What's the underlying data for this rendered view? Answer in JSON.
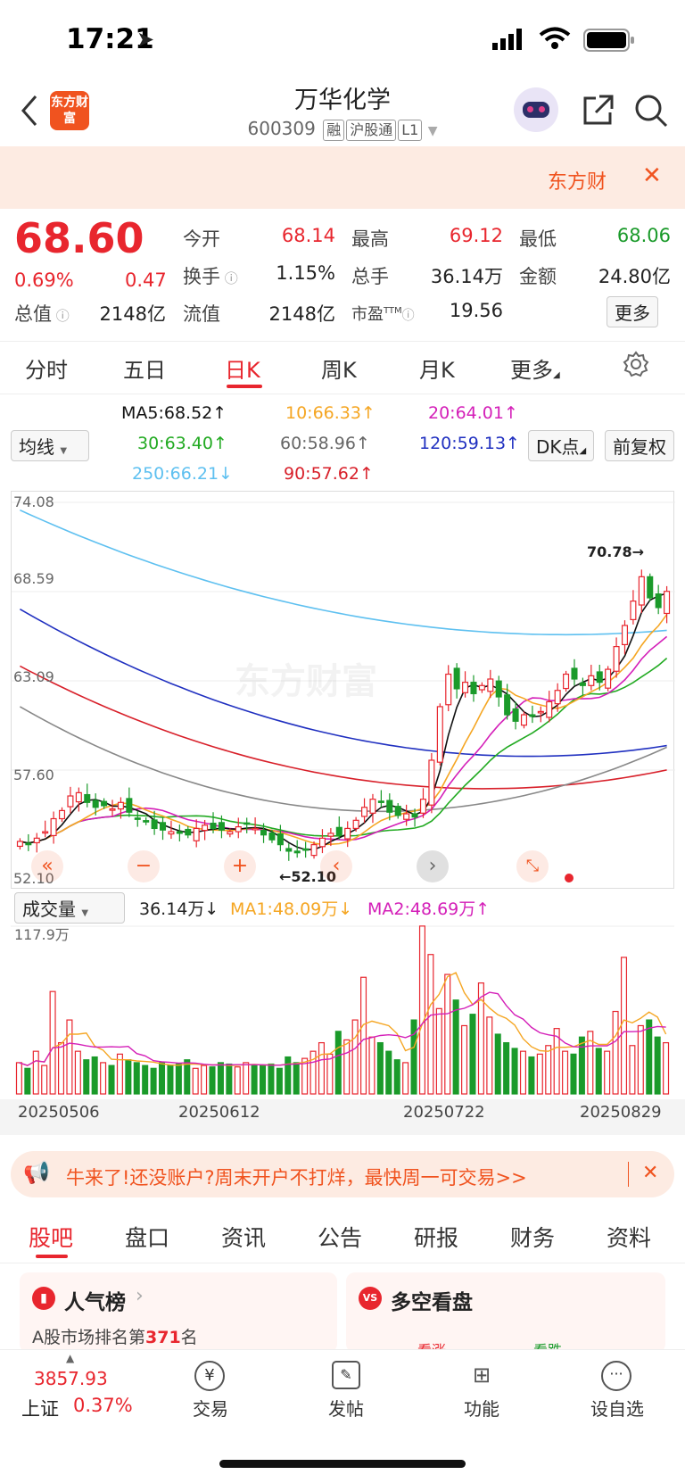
{
  "status": {
    "time": "17:21"
  },
  "header": {
    "title": "万华化学",
    "code": "600309",
    "tags": [
      "融",
      "沪股通",
      "L1"
    ],
    "logo_text": "东方财富"
  },
  "banner": {
    "text": "东方财"
  },
  "quote": {
    "price": "68.60",
    "pct": "0.69%",
    "change": "0.47",
    "open_label": "今开",
    "open": "68.14",
    "high_label": "最高",
    "high": "69.12",
    "low_label": "最低",
    "low": "68.06",
    "turnover_label": "换手",
    "turnover": "1.15%",
    "volume_label": "总手",
    "volume": "36.14万",
    "amount_label": "金额",
    "amount": "24.80亿",
    "mcap_label": "总值",
    "mcap": "2148亿",
    "float_label": "流值",
    "float": "2148亿",
    "pe_label": "市盈",
    "pe_tm": "TTM",
    "pe": "19.56",
    "more": "更多"
  },
  "tabs": [
    "分时",
    "五日",
    "日K",
    "周K",
    "月K",
    "更多"
  ],
  "ma": {
    "selector": "均线",
    "ma5": "MA5:68.52↑",
    "ma10": "10:66.33↑",
    "ma20": "20:64.01↑",
    "ma30": "30:63.40↑",
    "ma60": "60:58.96↑",
    "ma120": "120:59.13↑",
    "ma250": "250:66.21↓",
    "ma90": "90:57.62↑",
    "dk": "DK点",
    "fq": "前复权"
  },
  "chart": {
    "y_labels": [
      "74.08",
      "68.59",
      "63.09",
      "57.60",
      "52.10"
    ],
    "high_mark": "70.78→",
    "low_mark": "←52.10",
    "watermark": "东方财富"
  },
  "volume": {
    "selector": "成交量",
    "value": "36.14万↓",
    "ma1": "MA1:48.09万↓",
    "ma2": "MA2:48.69万↑",
    "ymax": "117.9万",
    "dates": [
      "20250506",
      "20250612",
      "20250722",
      "20250829"
    ]
  },
  "chart_data": {
    "type": "candlestick",
    "ylim": [
      52.1,
      74.08
    ],
    "closes": [
      53.2,
      53.0,
      53.4,
      53.8,
      54.6,
      55.1,
      56.0,
      56.2,
      55.6,
      55.3,
      55.4,
      55.2,
      55.6,
      55.0,
      54.6,
      54.4,
      54.0,
      53.9,
      53.8,
      53.7,
      53.6,
      54.0,
      54.2,
      54.0,
      53.9,
      53.8,
      54.1,
      54.3,
      54.0,
      53.6,
      53.3,
      53.0,
      52.6,
      52.5,
      52.7,
      53.0,
      53.4,
      53.7,
      53.6,
      54.0,
      54.5,
      55.3,
      55.8,
      55.6,
      55.0,
      54.8,
      54.9,
      54.7,
      55.8,
      58.2,
      61.5,
      63.5,
      62.6,
      63.0,
      62.3,
      62.8,
      63.2,
      62.1,
      61.0,
      60.6,
      61.0,
      60.9,
      61.2,
      61.8,
      62.5,
      63.5,
      63.2,
      62.8,
      63.4,
      63.0,
      63.8,
      65.2,
      66.5,
      68.0,
      69.5,
      68.2,
      67.6,
      68.6
    ],
    "volumes_wan": [
      22,
      18,
      30,
      20,
      72,
      36,
      52,
      30,
      24,
      26,
      22,
      20,
      28,
      24,
      22,
      20,
      18,
      22,
      20,
      21,
      24,
      18,
      20,
      19,
      22,
      21,
      19,
      22,
      20,
      20,
      21,
      18,
      26,
      22,
      25,
      30,
      36,
      28,
      44,
      38,
      52,
      82,
      40,
      36,
      30,
      24,
      22,
      52,
      118,
      98,
      60,
      84,
      66,
      48,
      56,
      78,
      54,
      42,
      36,
      32,
      30,
      26,
      28,
      34,
      46,
      30,
      28,
      40,
      44,
      32,
      30,
      58,
      96,
      34,
      48,
      52,
      40,
      36
    ],
    "high": 70.78,
    "low": 52.1,
    "vol_max_wan": 117.9,
    "series": [
      {
        "name": "MA5",
        "value": 68.52,
        "color": "#111111"
      },
      {
        "name": "MA10",
        "value": 66.33,
        "color": "#f5a623"
      },
      {
        "name": "MA20",
        "value": 64.01,
        "color": "#d41fb8"
      },
      {
        "name": "MA30",
        "value": 63.4,
        "color": "#22aa22"
      },
      {
        "name": "MA60",
        "value": 58.96,
        "color": "#888888"
      },
      {
        "name": "MA120",
        "value": 59.13,
        "color": "#2030c0"
      },
      {
        "name": "MA250",
        "value": 66.21,
        "color": "#5ec0f0"
      },
      {
        "name": "MA90",
        "value": 57.62,
        "color": "#d8202a"
      }
    ]
  },
  "promo": {
    "text": "牛来了!还没账户?周末开户不打烊，最快周一可交易>>"
  },
  "bottom_tabs": [
    "股吧",
    "盘口",
    "资讯",
    "公告",
    "研报",
    "财务",
    "资料"
  ],
  "cards": {
    "left_title": "人气榜",
    "left_sub_prefix": "A股市场排名第",
    "left_rank": "371",
    "left_sub_suffix": "名",
    "right_title": "多空看盘",
    "right_up": "看涨",
    "right_down": "看跌"
  },
  "bottom_nav": {
    "index_value": "3857.93",
    "index_name": "上证",
    "index_pct": "0.37%",
    "items": [
      "交易",
      "发帖",
      "功能",
      "设自选"
    ]
  },
  "colors": {
    "up": "#e8262e",
    "down": "#1a9a2a",
    "accent": "#f0531f"
  }
}
